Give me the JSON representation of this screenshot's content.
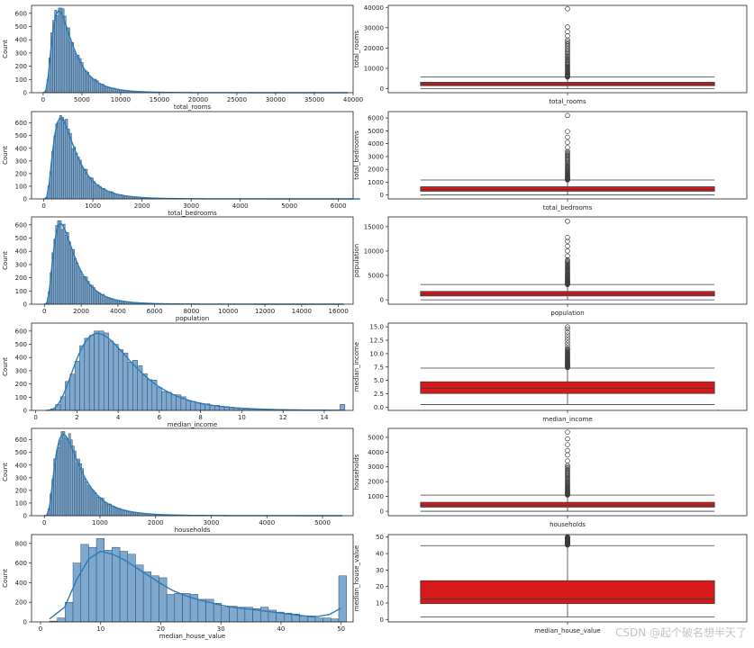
{
  "watermark": "CSDN @起个破名想半天了",
  "colors": {
    "hist_fill": "#7fa8cf",
    "hist_edge": "#2b4a66",
    "kde": "#2d7bb6",
    "box_fill": "#d7191c",
    "box_edge": "#3d3d3d",
    "flier": "#3d3d3d"
  },
  "chart_data": [
    {
      "type": "histogram",
      "variable": "total_rooms",
      "xlabel": "total_rooms",
      "ylabel": "Count",
      "xlim": [
        -1500,
        40000
      ],
      "ylim": [
        0,
        660
      ],
      "xticks": [
        0,
        5000,
        10000,
        15000,
        20000,
        25000,
        30000,
        35000,
        40000
      ],
      "yticks": [
        0,
        100,
        200,
        300,
        400,
        500,
        600
      ],
      "peak_x": 2000,
      "peak_count": 640,
      "range": [
        0,
        39320
      ],
      "skew": "right"
    },
    {
      "type": "boxplot",
      "variable": "total_rooms",
      "xlabel": "total_rooms",
      "ylabel": "total_rooms",
      "ylim": [
        -2000,
        41000
      ],
      "yticks": [
        0,
        10000,
        20000,
        30000,
        40000
      ],
      "whisker_low": 2,
      "q1": 1448,
      "median": 2127,
      "q3": 3148,
      "whisker_high": 5698,
      "outlier_range": [
        5720,
        24000
      ],
      "outliers_extra": [
        26000,
        28000,
        30400,
        39320
      ]
    },
    {
      "type": "histogram",
      "variable": "total_bedrooms",
      "xlabel": "total_bedrooms",
      "ylabel": "Count",
      "xlim": [
        -250,
        6300
      ],
      "ylim": [
        0,
        690
      ],
      "xticks": [
        0,
        1000,
        2000,
        3000,
        4000,
        5000,
        6000
      ],
      "yticks": [
        0,
        100,
        200,
        300,
        400,
        500,
        600
      ],
      "peak_x": 340,
      "peak_count": 660,
      "range": [
        1,
        6445
      ],
      "skew": "right"
    },
    {
      "type": "boxplot",
      "variable": "total_bedrooms",
      "xlabel": "total_bedrooms",
      "ylabel": "total_bedrooms",
      "ylim": [
        -300,
        6500
      ],
      "yticks": [
        0,
        1000,
        2000,
        3000,
        4000,
        5000,
        6000
      ],
      "whisker_low": 1,
      "q1": 297,
      "median": 435,
      "q3": 647,
      "whisker_high": 1170,
      "outlier_range": [
        1175,
        3400
      ],
      "outliers_extra": [
        3700,
        4100,
        4500,
        4950,
        6200
      ]
    },
    {
      "type": "histogram",
      "variable": "population",
      "xlabel": "population",
      "ylabel": "Count",
      "xlim": [
        -700,
        16800
      ],
      "ylim": [
        0,
        660
      ],
      "xticks": [
        0,
        2000,
        4000,
        6000,
        8000,
        10000,
        12000,
        14000,
        16000
      ],
      "yticks": [
        0,
        100,
        200,
        300,
        400,
        500,
        600
      ],
      "peak_x": 870,
      "peak_count": 630,
      "range": [
        3,
        16305
      ],
      "skew": "right"
    },
    {
      "type": "boxplot",
      "variable": "population",
      "xlabel": "population",
      "ylabel": "population",
      "ylim": [
        -900,
        17000
      ],
      "yticks": [
        0,
        5000,
        10000,
        15000
      ],
      "whisker_low": 3,
      "q1": 787,
      "median": 1166,
      "q3": 1725,
      "whisker_high": 3130,
      "outlier_range": [
        3135,
        8200
      ],
      "outliers_extra": [
        9000,
        10000,
        11000,
        12000,
        12800,
        16100
      ]
    },
    {
      "type": "histogram",
      "variable": "median_income",
      "xlabel": "median_income",
      "ylabel": "Count",
      "xlim": [
        -0.2,
        15.4
      ],
      "ylim": [
        0,
        660
      ],
      "xticks": [
        0,
        2,
        4,
        6,
        8,
        10,
        12,
        14
      ],
      "yticks": [
        0,
        100,
        200,
        300,
        400,
        500,
        600
      ],
      "peak_x": 3.0,
      "peak_count": 600,
      "range": [
        0.5,
        15.0
      ],
      "skew": "right"
    },
    {
      "type": "boxplot",
      "variable": "median_income",
      "xlabel": "median_income",
      "ylabel": "median_income",
      "ylim": [
        -0.6,
        15.7
      ],
      "yticks": [
        0,
        2.5,
        5,
        7.5,
        10,
        12.5,
        15
      ],
      "ytick_labels": [
        "0.0",
        "2.5",
        "5.0",
        "7.5",
        "10.0",
        "12.5",
        "15.0"
      ],
      "whisker_low": 0.5,
      "q1": 2.56,
      "median": 3.53,
      "q3": 4.74,
      "whisker_high": 7.3,
      "outlier_range": [
        7.4,
        11.0
      ],
      "outliers_extra": [
        11.5,
        12.0,
        12.5,
        13.0,
        13.5,
        14.0,
        14.6,
        15.0
      ]
    },
    {
      "type": "histogram",
      "variable": "households",
      "xlabel": "households",
      "ylabel": "Count",
      "xlim": [
        -230,
        5550
      ],
      "ylim": [
        0,
        690
      ],
      "xticks": [
        0,
        1000,
        2000,
        3000,
        4000,
        5000
      ],
      "yticks": [
        0,
        100,
        200,
        300,
        400,
        500,
        600
      ],
      "peak_x": 340,
      "peak_count": 665,
      "range": [
        1,
        5358
      ],
      "skew": "right"
    },
    {
      "type": "boxplot",
      "variable": "households",
      "xlabel": "households",
      "ylabel": "households",
      "ylim": [
        -300,
        5600
      ],
      "yticks": [
        0,
        1000,
        2000,
        3000,
        4000,
        5000
      ],
      "whisker_low": 1,
      "q1": 280,
      "median": 409,
      "q3": 605,
      "whisker_high": 1092,
      "outlier_range": [
        1095,
        3100
      ],
      "outliers_extra": [
        3400,
        3800,
        4100,
        4500,
        4900,
        5350
      ]
    },
    {
      "type": "histogram",
      "variable": "median_house_value",
      "xlabel": "median_house_value",
      "ylabel": "Count",
      "xlim": [
        -1.5,
        52
      ],
      "ylim": [
        0,
        890
      ],
      "xticks": [
        0,
        10,
        20,
        30,
        40,
        50
      ],
      "yticks": [
        0,
        200,
        400,
        600,
        800
      ],
      "bins": [
        {
          "x0": 1.5,
          "x1": 2.8,
          "count": 8
        },
        {
          "x0": 2.8,
          "x1": 4.1,
          "count": 40
        },
        {
          "x0": 4.1,
          "x1": 5.4,
          "count": 200
        },
        {
          "x0": 5.4,
          "x1": 6.7,
          "count": 600
        },
        {
          "x0": 6.7,
          "x1": 8.0,
          "count": 790
        },
        {
          "x0": 8.0,
          "x1": 9.3,
          "count": 760
        },
        {
          "x0": 9.3,
          "x1": 10.6,
          "count": 850
        },
        {
          "x0": 10.6,
          "x1": 11.9,
          "count": 730
        },
        {
          "x0": 11.9,
          "x1": 13.2,
          "count": 760
        },
        {
          "x0": 13.2,
          "x1": 14.5,
          "count": 720
        },
        {
          "x0": 14.5,
          "x1": 15.8,
          "count": 690
        },
        {
          "x0": 15.8,
          "x1": 17.1,
          "count": 580
        },
        {
          "x0": 17.1,
          "x1": 18.4,
          "count": 510
        },
        {
          "x0": 18.4,
          "x1": 19.7,
          "count": 470
        },
        {
          "x0": 19.7,
          "x1": 21.0,
          "count": 450
        },
        {
          "x0": 21.0,
          "x1": 22.3,
          "count": 280
        },
        {
          "x0": 22.3,
          "x1": 23.6,
          "count": 290
        },
        {
          "x0": 23.6,
          "x1": 24.9,
          "count": 290
        },
        {
          "x0": 24.9,
          "x1": 26.2,
          "count": 280
        },
        {
          "x0": 26.2,
          "x1": 27.5,
          "count": 230
        },
        {
          "x0": 27.5,
          "x1": 28.8,
          "count": 230
        },
        {
          "x0": 28.8,
          "x1": 30.1,
          "count": 190
        },
        {
          "x0": 30.1,
          "x1": 31.4,
          "count": 150
        },
        {
          "x0": 31.4,
          "x1": 32.7,
          "count": 160
        },
        {
          "x0": 32.7,
          "x1": 34.0,
          "count": 150
        },
        {
          "x0": 34.0,
          "x1": 35.3,
          "count": 150
        },
        {
          "x0": 35.3,
          "x1": 36.6,
          "count": 135
        },
        {
          "x0": 36.6,
          "x1": 37.9,
          "count": 150
        },
        {
          "x0": 37.9,
          "x1": 39.2,
          "count": 120
        },
        {
          "x0": 39.2,
          "x1": 40.5,
          "count": 100
        },
        {
          "x0": 40.5,
          "x1": 41.8,
          "count": 90
        },
        {
          "x0": 41.8,
          "x1": 43.1,
          "count": 80
        },
        {
          "x0": 43.1,
          "x1": 44.4,
          "count": 60
        },
        {
          "x0": 44.4,
          "x1": 45.7,
          "count": 50
        },
        {
          "x0": 45.7,
          "x1": 47.0,
          "count": 40
        },
        {
          "x0": 47.0,
          "x1": 48.3,
          "count": 40
        },
        {
          "x0": 48.3,
          "x1": 49.6,
          "count": 30
        },
        {
          "x0": 49.6,
          "x1": 50.9,
          "count": 470
        }
      ],
      "kde": [
        [
          1.5,
          30
        ],
        [
          4,
          150
        ],
        [
          6,
          430
        ],
        [
          8,
          640
        ],
        [
          10,
          720
        ],
        [
          12,
          690
        ],
        [
          14,
          630
        ],
        [
          16,
          550
        ],
        [
          18,
          470
        ],
        [
          20,
          390
        ],
        [
          22,
          320
        ],
        [
          24,
          270
        ],
        [
          26,
          230
        ],
        [
          28,
          200
        ],
        [
          30,
          170
        ],
        [
          32,
          150
        ],
        [
          34,
          135
        ],
        [
          36,
          120
        ],
        [
          38,
          105
        ],
        [
          40,
          90
        ],
        [
          42,
          75
        ],
        [
          44,
          60
        ],
        [
          46,
          55
        ],
        [
          48,
          75
        ],
        [
          50,
          140
        ]
      ]
    },
    {
      "type": "boxplot",
      "variable": "median_house_value",
      "xlabel": "median_house_value",
      "ylabel": "median_house_value",
      "ylim": [
        -1.5,
        51.5
      ],
      "yticks": [
        0,
        10,
        20,
        30,
        40,
        50
      ],
      "whisker_low": 1.5,
      "q1": 9.6,
      "median": 12.3,
      "q3": 23.5,
      "whisker_high": 44.8,
      "outlier_range": [
        45.2,
        50.0
      ],
      "outliers_extra": [
        50.0,
        50.0,
        49.5
      ]
    }
  ]
}
